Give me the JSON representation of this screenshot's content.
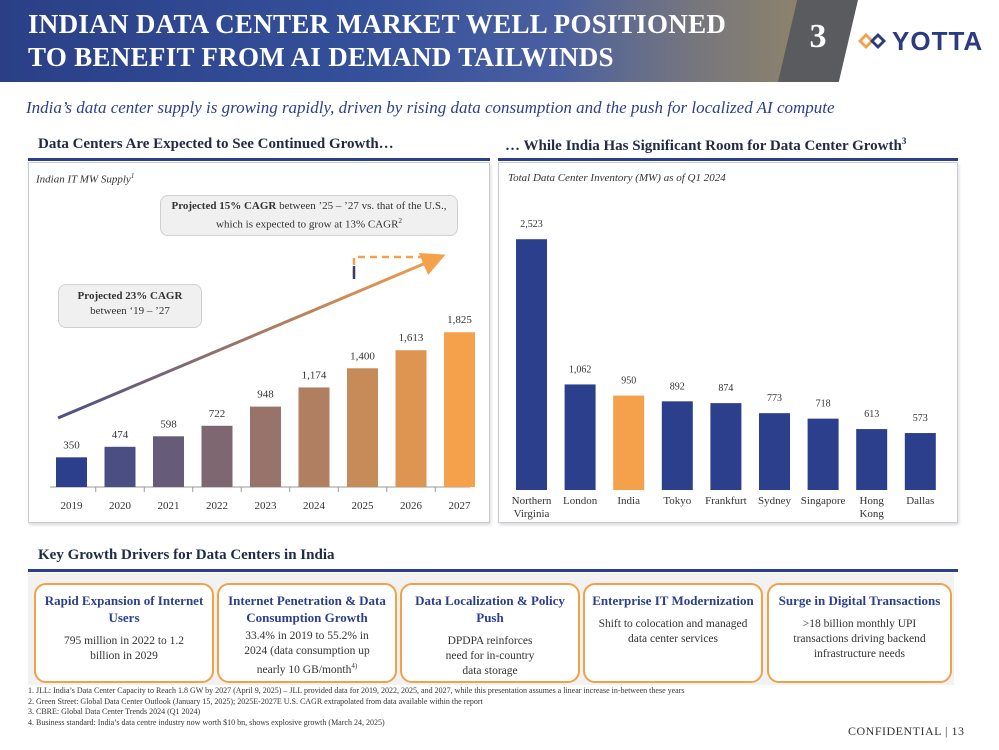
{
  "header": {
    "title_line1": "INDIAN DATA CENTER MARKET WELL POSITIONED",
    "title_line2": "TO BENEFIT FROM AI DEMAND TAILWINDS",
    "page_number": "3",
    "logo_text": "YOTTA",
    "colors": {
      "navy": "#2c3f8c",
      "orange": "#f5a04a",
      "gray_tab": "#595b5e"
    }
  },
  "subtitle": "India’s data center supply is growing rapidly, driven by rising data consumption and the push for localized AI compute",
  "left_section": {
    "title": "Data Centers Are Expected to See Continued Growth…",
    "chart_label": "Indian IT MW Supply",
    "chart_label_sup": "1",
    "callout_top_bold": "Projected 15% CAGR",
    "callout_top_text": " between ’25 – ’27 vs. that of the U.S., which is expected to grow at 13% CAGR",
    "callout_top_sup": "2",
    "callout_left_line1": "Projected 23% CAGR",
    "callout_left_line2": "between ‘19 – ’27"
  },
  "right_section": {
    "title": "… While India Has Significant Room for Data Center Growth",
    "title_sup": "3",
    "chart_label": "Total Data Center Inventory (MW) as of Q1 2024"
  },
  "chart_data": [
    {
      "type": "bar",
      "title": "Indian IT MW Supply",
      "categories": [
        "2019",
        "2020",
        "2021",
        "2022",
        "2023",
        "2024",
        "2025",
        "2026",
        "2027"
      ],
      "values": [
        350,
        474,
        598,
        722,
        948,
        1174,
        1400,
        1613,
        1825
      ],
      "value_labels": [
        "350",
        "474",
        "598",
        "722",
        "948",
        "1,174",
        "1,400",
        "1,613",
        "1,825"
      ],
      "ylim": [
        0,
        2500
      ],
      "xlabel": "",
      "ylabel": "",
      "style": "gradient from navy to orange"
    },
    {
      "type": "bar",
      "title": "Total Data Center Inventory (MW) as of Q1 2024",
      "categories": [
        [
          "Northern",
          "Virginia"
        ],
        [
          "London"
        ],
        [
          "India"
        ],
        [
          "Tokyo"
        ],
        [
          "Frankfurt"
        ],
        [
          "Sydney"
        ],
        [
          "Singapore"
        ],
        [
          "Hong",
          "Kong"
        ],
        [
          "Dallas"
        ]
      ],
      "values": [
        2523,
        1062,
        950,
        892,
        874,
        773,
        718,
        613,
        573
      ],
      "value_labels": [
        "2,523",
        "1,062",
        "950",
        "892",
        "874",
        "773",
        "718",
        "613",
        "573"
      ],
      "highlight": "India",
      "ylim": [
        0,
        2600
      ],
      "xlabel": "",
      "ylabel": ""
    }
  ],
  "drivers": {
    "title": "Key Growth Drivers for Data Centers in India",
    "items": [
      {
        "title": "Rapid Expansion of Internet Users",
        "body": "795 million in 2022 to 1.2 billion in 2029"
      },
      {
        "title": "Internet Penetration & Data Consumption Growth",
        "body": "33.4% in 2019 to 55.2% in 2024 (data consumption up nearly 10 GB/month",
        "sup": "4)"
      },
      {
        "title": "Data Localization & Policy Push",
        "body": "DPDPA reinforces need for in-country data storage"
      },
      {
        "title": "Enterprise IT Modernization",
        "body": "Shift to colocation and managed data center services"
      },
      {
        "title": "Surge in Digital Transactions",
        "body": ">18 billion monthly UPI transactions driving backend infrastructure needs"
      }
    ]
  },
  "footnotes": [
    "1.   JLL: India’s Data Center Capacity to Reach 1.8 GW by 2027 (April 9, 2025) – JLL provided data for 2019, 2022, 2025, and 2027, while this presentation assumes a linear increase in-between these years",
    "2.   Green Street: Global Data Center Outlook (January 15, 2025); 2025E-2027E U.S. CAGR extrapolated from data available within the report",
    "3.   CBRE: Global Data Center Trends 2024 (Q1 2024)",
    "4.   Business standard: India’s data centre industry now worth $10 bn, shows explosive growth (March 24, 2025)"
  ],
  "confidential": "CONFIDENTIAL | 13"
}
